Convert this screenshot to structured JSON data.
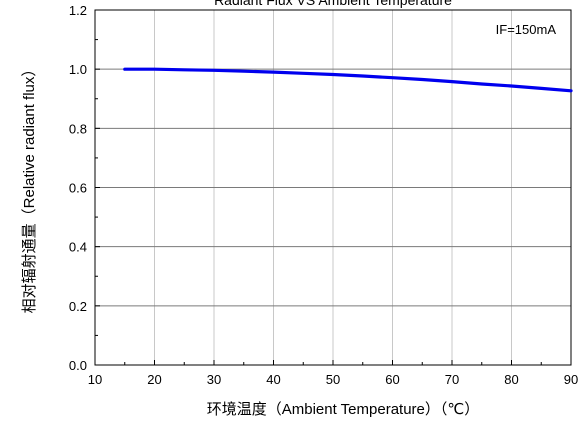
{
  "chart_data": {
    "type": "line",
    "title": "Radiant Flux VS Ambient Temperature",
    "xlabel": "环境温度（Ambient Temperature）（℃）",
    "ylabel": "相对辐射通量（Relative radiant flux）",
    "annotation": "IF=150mA",
    "xlim": [
      10,
      90
    ],
    "ylim": [
      0.0,
      1.2
    ],
    "x_ticks": [
      10,
      20,
      30,
      40,
      50,
      60,
      70,
      80,
      90
    ],
    "y_ticks": [
      "0.0",
      "0.2",
      "0.4",
      "0.6",
      "0.8",
      "1.0",
      "1.2"
    ],
    "grid": true,
    "series": [
      {
        "color": "#0000ee",
        "x": [
          15,
          20,
          25,
          30,
          35,
          40,
          45,
          50,
          55,
          60,
          65,
          70,
          75,
          80,
          85,
          90
        ],
        "y": [
          1.0,
          1.0,
          0.998,
          0.996,
          0.993,
          0.99,
          0.986,
          0.982,
          0.977,
          0.971,
          0.965,
          0.958,
          0.95,
          0.943,
          0.935,
          0.927
        ]
      }
    ]
  }
}
